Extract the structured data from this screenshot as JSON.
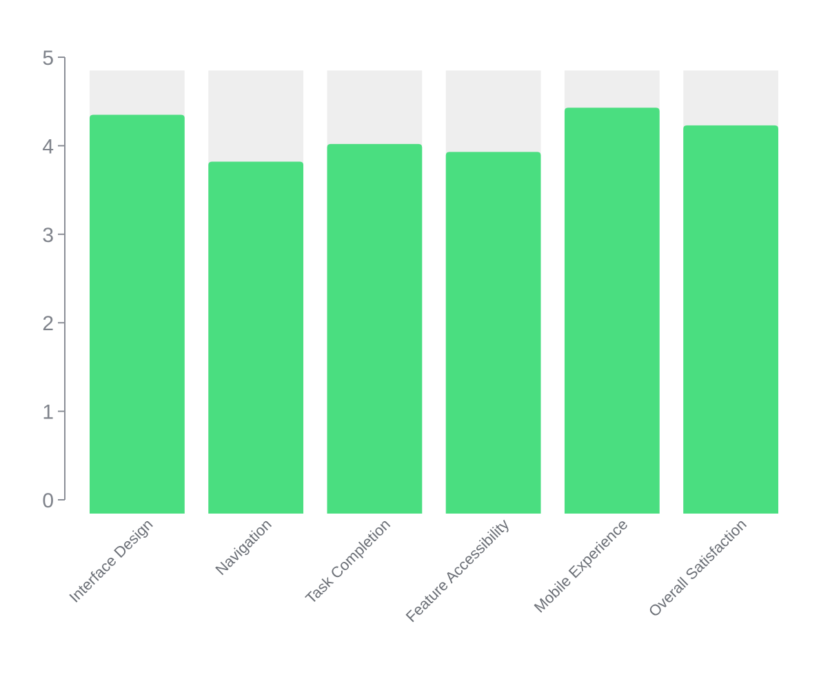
{
  "chart_data": {
    "type": "bar",
    "categories": [
      "Interface Design",
      "Navigation",
      "Task Completion",
      "Feature Accessibility",
      "Mobile Experience",
      "Overall Satisfaction"
    ],
    "values": [
      4.35,
      3.82,
      4.02,
      3.93,
      4.43,
      4.23
    ],
    "background_max": 4.85,
    "ylim": [
      0,
      5
    ],
    "yticks": [
      "0",
      "1",
      "2",
      "3",
      "4",
      "5"
    ],
    "title": "",
    "xlabel": "",
    "ylabel": "",
    "grid": false,
    "legend": "none",
    "colors": {
      "bar": "#4ade80",
      "track": "#eeeeee",
      "axis": "#8a8e96"
    }
  }
}
